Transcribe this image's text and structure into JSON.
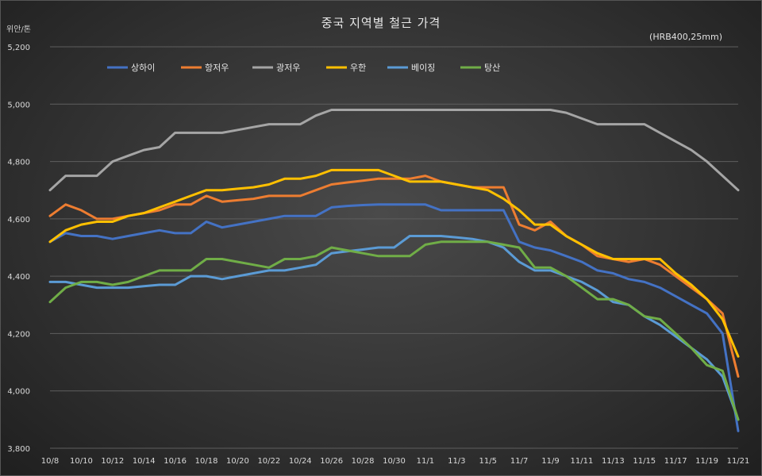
{
  "chart_data": {
    "type": "line",
    "title": "중국 지역별 철근 가격",
    "subtitle": "(HRB400,25mm)",
    "ylabel": "위안/톤",
    "xlabel": "",
    "ylim": [
      3800,
      5200
    ],
    "yticks": [
      3800,
      4000,
      4200,
      4400,
      4600,
      4800,
      5000,
      5200
    ],
    "grid": true,
    "legend_position": "top",
    "x": [
      "10/8",
      "10/9",
      "10/10",
      "10/11",
      "10/12",
      "10/13",
      "10/14",
      "10/15",
      "10/16",
      "10/17",
      "10/18",
      "10/19",
      "10/20",
      "10/21",
      "10/22",
      "10/23",
      "10/24",
      "10/25",
      "10/26",
      "10/27",
      "10/28",
      "10/29",
      "10/30",
      "10/31",
      "11/1",
      "11/2",
      "11/3",
      "11/4",
      "11/5",
      "11/6",
      "11/7",
      "11/8",
      "11/9",
      "11/10",
      "11/11",
      "11/12",
      "11/13",
      "11/14",
      "11/15",
      "11/16",
      "11/17",
      "11/18",
      "11/19",
      "11/20",
      "11/21"
    ],
    "xtick_labels": [
      "10/8",
      "10/10",
      "10/12",
      "10/14",
      "10/16",
      "10/18",
      "10/20",
      "10/22",
      "10/24",
      "10/26",
      "10/28",
      "10/30",
      "11/1",
      "11/3",
      "11/5",
      "11/7",
      "11/9",
      "11/11",
      "11/13",
      "11/15",
      "11/17",
      "11/19",
      "11/21"
    ],
    "series": [
      {
        "name": "상하이",
        "color": "#4472C4",
        "values": [
          4520,
          4550,
          4540,
          4540,
          4530,
          4540,
          4550,
          4560,
          4550,
          4550,
          4590,
          4570,
          4580,
          4590,
          4600,
          4610,
          4610,
          4610,
          4640,
          4645,
          4648,
          4650,
          4650,
          4650,
          4650,
          4630,
          4630,
          4630,
          4630,
          4630,
          4520,
          4500,
          4490,
          4470,
          4450,
          4420,
          4410,
          4390,
          4380,
          4360,
          4330,
          4300,
          4270,
          4200,
          3860
        ]
      },
      {
        "name": "항저우",
        "color": "#ED7D31",
        "values": [
          4610,
          4650,
          4630,
          4600,
          4600,
          4610,
          4620,
          4630,
          4650,
          4650,
          4680,
          4660,
          4665,
          4670,
          4680,
          4680,
          4680,
          4700,
          4720,
          4727,
          4733,
          4740,
          4740,
          4740,
          4750,
          4730,
          4720,
          4710,
          4710,
          4710,
          4580,
          4560,
          4590,
          4540,
          4510,
          4470,
          4460,
          4450,
          4460,
          4440,
          4400,
          4360,
          4320,
          4270,
          4050
        ]
      },
      {
        "name": "광저우",
        "color": "#A5A5A5",
        "values": [
          4700,
          4750,
          4750,
          4750,
          4800,
          4820,
          4840,
          4850,
          4900,
          4900,
          4900,
          4900,
          4910,
          4920,
          4930,
          4930,
          4930,
          4960,
          4980,
          4980,
          4980,
          4980,
          4980,
          4980,
          4980,
          4980,
          4980,
          4980,
          4980,
          4980,
          4980,
          4980,
          4980,
          4970,
          4950,
          4930,
          4930,
          4930,
          4930,
          4900,
          4870,
          4840,
          4800,
          4750,
          4700
        ]
      },
      {
        "name": "우한",
        "color": "#FFC000",
        "values": [
          4520,
          4560,
          4580,
          4590,
          4590,
          4610,
          4620,
          4640,
          4660,
          4680,
          4700,
          4700,
          4705,
          4710,
          4720,
          4740,
          4740,
          4750,
          4770,
          4770,
          4770,
          4770,
          4750,
          4730,
          4730,
          4730,
          4720,
          4710,
          4700,
          4670,
          4630,
          4580,
          4580,
          4540,
          4510,
          4480,
          4460,
          4460,
          4460,
          4460,
          4410,
          4370,
          4320,
          4250,
          4120
        ]
      },
      {
        "name": "베이징",
        "color": "#5B9BD5",
        "values": [
          4380,
          4380,
          4370,
          4360,
          4360,
          4360,
          4365,
          4370,
          4370,
          4400,
          4400,
          4390,
          4400,
          4410,
          4420,
          4420,
          4430,
          4440,
          4480,
          4487,
          4493,
          4500,
          4500,
          4540,
          4540,
          4540,
          4535,
          4530,
          4520,
          4500,
          4450,
          4420,
          4420,
          4400,
          4380,
          4350,
          4310,
          4300,
          4260,
          4230,
          4190,
          4150,
          4110,
          4050,
          3900
        ]
      },
      {
        "name": "탕산",
        "color": "#70AD47",
        "values": [
          4310,
          4360,
          4380,
          4380,
          4370,
          4380,
          4400,
          4420,
          4420,
          4420,
          4460,
          4460,
          4450,
          4440,
          4430,
          4460,
          4460,
          4470,
          4500,
          4490,
          4480,
          4470,
          4470,
          4470,
          4510,
          4520,
          4520,
          4520,
          4520,
          4510,
          4500,
          4430,
          4430,
          4400,
          4360,
          4320,
          4320,
          4300,
          4260,
          4250,
          4200,
          4150,
          4090,
          4070,
          3900
        ]
      }
    ]
  }
}
